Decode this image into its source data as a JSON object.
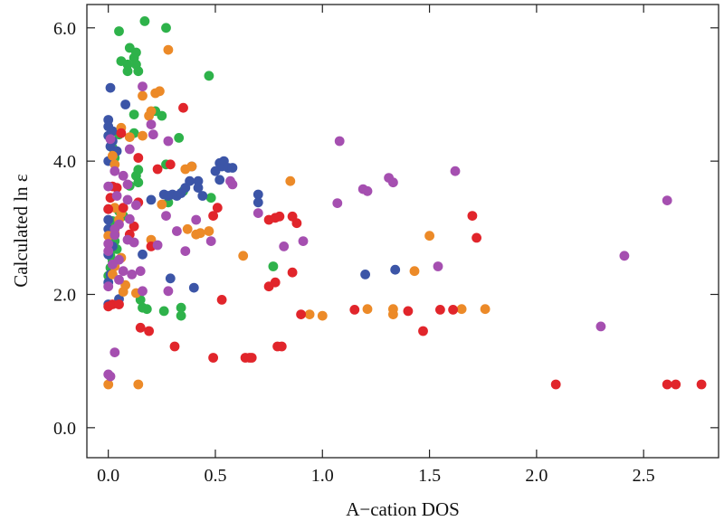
{
  "chart_data": {
    "type": "scatter",
    "title": "",
    "xlabel": "A−cation DOS",
    "ylabel": "Calculated ln ε",
    "xlim": [
      -0.1,
      2.85
    ],
    "ylim": [
      -0.45,
      6.35
    ],
    "xticks": [
      0.0,
      0.5,
      1.0,
      1.5,
      2.0,
      2.5
    ],
    "xtick_labels": [
      "0.0",
      "0.5",
      "1.0",
      "1.5",
      "2.0",
      "2.5"
    ],
    "yticks": [
      0.0,
      2.0,
      4.0,
      6.0
    ],
    "ytick_labels": [
      "0.0",
      "2.0",
      "4.0",
      "6.0"
    ],
    "grid": false,
    "legend": "none",
    "series": [
      {
        "name": "green",
        "color": "#2eb24a",
        "points": [
          [
            0.05,
            5.95
          ],
          [
            0.06,
            5.5
          ],
          [
            0.09,
            5.45
          ],
          [
            0.09,
            5.35
          ],
          [
            0.1,
            5.7
          ],
          [
            0.12,
            5.55
          ],
          [
            0.13,
            5.45
          ],
          [
            0.13,
            5.63
          ],
          [
            0.14,
            5.35
          ],
          [
            0.17,
            6.1
          ],
          [
            0.27,
            6.0
          ],
          [
            0.47,
            5.28
          ],
          [
            0.12,
            4.7
          ],
          [
            0.22,
            4.75
          ],
          [
            0.25,
            4.68
          ],
          [
            0.05,
            4.4
          ],
          [
            0.12,
            4.42
          ],
          [
            0.33,
            4.35
          ],
          [
            0.02,
            4.2
          ],
          [
            0.03,
            4.05
          ],
          [
            0.14,
            3.87
          ],
          [
            0.27,
            3.95
          ],
          [
            0.13,
            3.78
          ],
          [
            0.14,
            3.68
          ],
          [
            0.1,
            3.63
          ],
          [
            0.28,
            3.38
          ],
          [
            0.35,
            3.55
          ],
          [
            0.48,
            3.45
          ],
          [
            0.05,
            3.25
          ],
          [
            0.07,
            3.18
          ],
          [
            0.02,
            3.1
          ],
          [
            0.02,
            2.9
          ],
          [
            0.03,
            2.8
          ],
          [
            0.04,
            2.68
          ],
          [
            0.01,
            2.58
          ],
          [
            0.02,
            2.5
          ],
          [
            0.01,
            2.4
          ],
          [
            0.0,
            2.28
          ],
          [
            0.77,
            2.42
          ],
          [
            0.15,
            1.92
          ],
          [
            0.16,
            1.8
          ],
          [
            0.18,
            1.78
          ],
          [
            0.34,
            1.8
          ],
          [
            0.34,
            1.68
          ],
          [
            0.26,
            1.75
          ]
        ]
      },
      {
        "name": "blue",
        "color": "#3c55a7",
        "points": [
          [
            0.0,
            4.62
          ],
          [
            0.0,
            4.52
          ],
          [
            0.02,
            4.45
          ],
          [
            0.0,
            4.38
          ],
          [
            0.02,
            4.3
          ],
          [
            0.01,
            4.22
          ],
          [
            0.04,
            4.15
          ],
          [
            0.0,
            4.0
          ],
          [
            0.08,
            4.85
          ],
          [
            0.01,
            5.1
          ],
          [
            0.26,
            3.5
          ],
          [
            0.28,
            3.48
          ],
          [
            0.3,
            3.5
          ],
          [
            0.32,
            3.48
          ],
          [
            0.34,
            3.52
          ],
          [
            0.36,
            3.6
          ],
          [
            0.38,
            3.7
          ],
          [
            0.39,
            3.92
          ],
          [
            0.42,
            3.7
          ],
          [
            0.42,
            3.6
          ],
          [
            0.44,
            3.48
          ],
          [
            0.5,
            3.85
          ],
          [
            0.52,
            3.97
          ],
          [
            0.53,
            3.92
          ],
          [
            0.54,
            4.0
          ],
          [
            0.56,
            3.9
          ],
          [
            0.52,
            3.72
          ],
          [
            0.58,
            3.9
          ],
          [
            0.7,
            3.5
          ],
          [
            0.7,
            3.38
          ],
          [
            0.0,
            3.28
          ],
          [
            0.0,
            3.12
          ],
          [
            0.0,
            2.98
          ],
          [
            0.02,
            2.72
          ],
          [
            0.0,
            2.6
          ],
          [
            0.01,
            2.3
          ],
          [
            0.0,
            2.18
          ],
          [
            0.29,
            2.24
          ],
          [
            0.4,
            2.1
          ],
          [
            1.2,
            2.3
          ],
          [
            1.34,
            2.37
          ],
          [
            0.05,
            1.93
          ],
          [
            0.0,
            1.85
          ],
          [
            0.16,
            2.6
          ],
          [
            0.2,
            3.42
          ]
        ]
      },
      {
        "name": "orange",
        "color": "#ec8a28",
        "points": [
          [
            0.28,
            5.67
          ],
          [
            0.22,
            5.02
          ],
          [
            0.24,
            5.05
          ],
          [
            0.16,
            4.98
          ],
          [
            0.19,
            4.68
          ],
          [
            0.2,
            4.75
          ],
          [
            0.06,
            4.5
          ],
          [
            0.1,
            4.36
          ],
          [
            0.16,
            4.38
          ],
          [
            0.02,
            4.08
          ],
          [
            0.03,
            3.95
          ],
          [
            0.39,
            3.92
          ],
          [
            0.36,
            3.88
          ],
          [
            0.85,
            3.7
          ],
          [
            0.25,
            3.35
          ],
          [
            0.03,
            3.3
          ],
          [
            0.06,
            3.22
          ],
          [
            0.05,
            3.12
          ],
          [
            0.03,
            2.92
          ],
          [
            0.0,
            2.88
          ],
          [
            0.37,
            2.98
          ],
          [
            0.43,
            2.92
          ],
          [
            0.41,
            2.9
          ],
          [
            0.47,
            2.95
          ],
          [
            0.2,
            2.82
          ],
          [
            0.63,
            2.58
          ],
          [
            0.06,
            2.55
          ],
          [
            0.03,
            2.42
          ],
          [
            0.02,
            2.3
          ],
          [
            0.08,
            2.14
          ],
          [
            0.07,
            2.04
          ],
          [
            0.13,
            2.02
          ],
          [
            1.5,
            2.88
          ],
          [
            1.43,
            2.35
          ],
          [
            0.94,
            1.7
          ],
          [
            1.0,
            1.68
          ],
          [
            1.21,
            1.78
          ],
          [
            1.33,
            1.78
          ],
          [
            1.33,
            1.7
          ],
          [
            1.65,
            1.78
          ],
          [
            1.76,
            1.78
          ],
          [
            0.0,
            0.65
          ],
          [
            0.14,
            0.65
          ]
        ]
      },
      {
        "name": "red",
        "color": "#e1252b",
        "points": [
          [
            0.35,
            4.8
          ],
          [
            0.06,
            4.42
          ],
          [
            0.14,
            4.05
          ],
          [
            0.29,
            3.95
          ],
          [
            0.23,
            3.88
          ],
          [
            0.02,
            3.62
          ],
          [
            0.04,
            3.6
          ],
          [
            0.01,
            3.45
          ],
          [
            0.0,
            3.28
          ],
          [
            0.07,
            3.3
          ],
          [
            0.14,
            3.38
          ],
          [
            0.12,
            3.02
          ],
          [
            0.1,
            2.9
          ],
          [
            0.2,
            2.72
          ],
          [
            0.51,
            3.3
          ],
          [
            0.49,
            3.18
          ],
          [
            0.75,
            3.12
          ],
          [
            0.78,
            3.15
          ],
          [
            0.8,
            3.17
          ],
          [
            0.86,
            3.17
          ],
          [
            0.88,
            3.07
          ],
          [
            0.86,
            2.33
          ],
          [
            0.75,
            2.12
          ],
          [
            0.78,
            2.18
          ],
          [
            0.53,
            1.92
          ],
          [
            0.0,
            1.82
          ],
          [
            0.02,
            1.85
          ],
          [
            0.05,
            1.85
          ],
          [
            0.15,
            1.5
          ],
          [
            0.19,
            1.45
          ],
          [
            0.31,
            1.22
          ],
          [
            0.49,
            1.05
          ],
          [
            0.64,
            1.05
          ],
          [
            0.66,
            1.05
          ],
          [
            0.67,
            1.05
          ],
          [
            0.79,
            1.22
          ],
          [
            0.81,
            1.22
          ],
          [
            0.9,
            1.7
          ],
          [
            1.15,
            1.77
          ],
          [
            1.4,
            1.75
          ],
          [
            1.55,
            1.77
          ],
          [
            1.61,
            1.77
          ],
          [
            1.47,
            1.45
          ],
          [
            1.7,
            3.18
          ],
          [
            1.72,
            2.85
          ],
          [
            2.09,
            0.65
          ],
          [
            2.61,
            0.65
          ],
          [
            2.65,
            0.65
          ],
          [
            2.77,
            0.65
          ]
        ]
      },
      {
        "name": "purple",
        "color": "#a54fb0",
        "points": [
          [
            0.16,
            5.12
          ],
          [
            0.2,
            4.55
          ],
          [
            0.1,
            4.18
          ],
          [
            0.28,
            4.3
          ],
          [
            0.21,
            4.4
          ],
          [
            0.01,
            4.33
          ],
          [
            0.03,
            3.85
          ],
          [
            0.07,
            3.78
          ],
          [
            0.09,
            3.65
          ],
          [
            0.0,
            3.62
          ],
          [
            0.04,
            3.48
          ],
          [
            0.09,
            3.42
          ],
          [
            0.13,
            3.34
          ],
          [
            0.27,
            3.18
          ],
          [
            0.1,
            3.13
          ],
          [
            0.05,
            3.05
          ],
          [
            0.03,
            2.98
          ],
          [
            0.03,
            2.89
          ],
          [
            0.0,
            2.76
          ],
          [
            0.09,
            2.82
          ],
          [
            0.12,
            2.78
          ],
          [
            0.23,
            2.74
          ],
          [
            0.32,
            2.95
          ],
          [
            0.36,
            2.65
          ],
          [
            0.48,
            2.8
          ],
          [
            0.41,
            3.12
          ],
          [
            0.0,
            2.65
          ],
          [
            0.05,
            2.52
          ],
          [
            0.02,
            2.45
          ],
          [
            0.07,
            2.35
          ],
          [
            0.11,
            2.3
          ],
          [
            0.15,
            2.35
          ],
          [
            0.05,
            2.22
          ],
          [
            0.0,
            2.12
          ],
          [
            0.16,
            2.05
          ],
          [
            0.28,
            2.05
          ],
          [
            0.57,
            3.7
          ],
          [
            0.58,
            3.65
          ],
          [
            0.7,
            3.22
          ],
          [
            0.82,
            2.72
          ],
          [
            0.91,
            2.8
          ],
          [
            1.07,
            3.37
          ],
          [
            1.08,
            4.3
          ],
          [
            1.19,
            3.58
          ],
          [
            1.21,
            3.55
          ],
          [
            1.31,
            3.75
          ],
          [
            1.33,
            3.68
          ],
          [
            1.54,
            2.42
          ],
          [
            1.62,
            3.85
          ],
          [
            2.61,
            3.41
          ],
          [
            2.41,
            2.58
          ],
          [
            2.3,
            1.52
          ],
          [
            0.0,
            0.8
          ],
          [
            0.01,
            0.77
          ],
          [
            0.03,
            1.13
          ]
        ]
      }
    ]
  }
}
